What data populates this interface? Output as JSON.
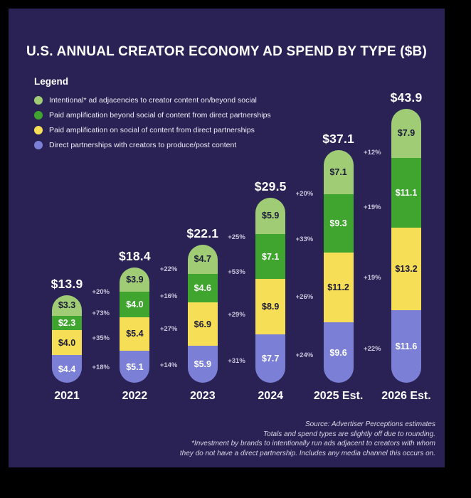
{
  "title": "U.S. ANNUAL CREATOR ECONOMY AD SPEND BY TYPE ($B)",
  "legend": {
    "heading": "Legend",
    "items": [
      {
        "label": "Intentional* ad adjacencies to creator content on/beyond social",
        "color": "#9fcc75"
      },
      {
        "label": "Paid amplification beyond social of content from direct partnerships",
        "color": "#3fa52e"
      },
      {
        "label": "Paid amplification on social of content from direct partnerships",
        "color": "#f6de57"
      },
      {
        "label": "Direct partnerships with creators to produce/post content",
        "color": "#7b80d6"
      }
    ]
  },
  "chart_data": {
    "type": "bar",
    "stacked": true,
    "grid": false,
    "legend_position": "top-left",
    "categories": [
      "2021",
      "2022",
      "2023",
      "2024",
      "2025 Est.",
      "2026 Est."
    ],
    "totals": [
      13.9,
      18.4,
      22.1,
      29.5,
      37.1,
      43.9
    ],
    "totals_display": [
      "$13.9",
      "$18.4",
      "$22.1",
      "$29.5",
      "$37.1",
      "$43.9"
    ],
    "series": [
      {
        "name": "Intentional* ad adjacencies to creator content on/beyond social",
        "color": "#9fcc75",
        "label_color": "#1b1b38",
        "values": [
          3.3,
          3.9,
          4.7,
          5.9,
          7.1,
          7.9
        ],
        "labels": [
          "$3.3",
          "$3.9",
          "$4.7",
          "$5.9",
          "$7.1",
          "$7.9"
        ]
      },
      {
        "name": "Paid amplification beyond social of content from direct partnerships",
        "color": "#3fa52e",
        "label_color": "#ffffff",
        "values": [
          2.3,
          4.0,
          4.6,
          7.1,
          9.3,
          11.1
        ],
        "labels": [
          "$2.3",
          "$4.0",
          "$4.6",
          "$7.1",
          "$9.3",
          "$11.1"
        ]
      },
      {
        "name": "Paid amplification on social of content from direct partnerships",
        "color": "#f6de57",
        "label_color": "#1b1b38",
        "values": [
          4.0,
          5.4,
          6.9,
          8.9,
          11.2,
          13.2
        ],
        "labels": [
          "$4.0",
          "$5.4",
          "$6.9",
          "$8.9",
          "$11.2",
          "$13.2"
        ]
      },
      {
        "name": "Direct partnerships with creators to produce/post content",
        "color": "#7b80d6",
        "label_color": "#ffffff",
        "values": [
          4.4,
          5.1,
          5.9,
          7.7,
          9.6,
          11.6
        ],
        "labels": [
          "$4.4",
          "$5.1",
          "$5.9",
          "$7.7",
          "$9.6",
          "$11.6"
        ]
      }
    ],
    "growth_labels": [
      [
        "+20%",
        "+73%",
        "+35%",
        "+18%"
      ],
      [
        "+22%",
        "+16%",
        "+27%",
        "+14%"
      ],
      [
        "+25%",
        "+53%",
        "+29%",
        "+31%"
      ],
      [
        "+20%",
        "+33%",
        "+26%",
        "+24%"
      ],
      [
        "+12%",
        "+19%",
        "+19%",
        "+22%"
      ]
    ]
  },
  "footer": {
    "lines": [
      "Source: Advertiser Perceptions estimates",
      "Totals and spend types are slightly off due to rounding.",
      "*Investment by brands to intentionally run ads adjacent to creators with whom",
      "they do not have a direct partnership. Includes any media channel this occurs on."
    ]
  },
  "colors": {
    "page_background": "#000000",
    "card_background": "#2a2255",
    "title_text": "#ffffff",
    "percent_text": "#c7c5da",
    "footer_text": "#d8d6e4"
  }
}
